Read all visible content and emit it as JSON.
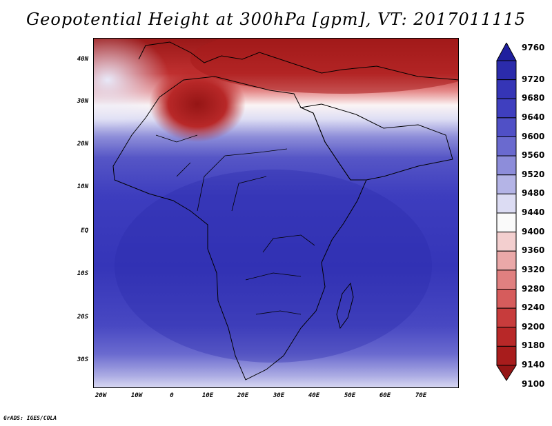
{
  "title": "Geopotential Height at 300hPa [gpm], VT: 2017011115",
  "credit": "GrADS: IGES/COLA",
  "lat_labels": [
    "40N",
    "30N",
    "20N",
    "10N",
    "EQ",
    "10S",
    "20S",
    "30S"
  ],
  "lon_labels": [
    "20W",
    "10W",
    "0",
    "10E",
    "20E",
    "30E",
    "40E",
    "50E",
    "60E",
    "70E"
  ],
  "colorbar": {
    "levels": [
      "9760",
      "9720",
      "9680",
      "9640",
      "9600",
      "9560",
      "9520",
      "9480",
      "9440",
      "9400",
      "9360",
      "9320",
      "9280",
      "9240",
      "9200",
      "9180",
      "9140",
      "9100"
    ],
    "colors": [
      "#1f1f9e",
      "#2b2bab",
      "#3535b6",
      "#3f3fbf",
      "#5050c6",
      "#6a6acf",
      "#8d8dda",
      "#b4b4e6",
      "#dcdcf3",
      "#fafafa",
      "#f3cfcf",
      "#eaa8a8",
      "#e08080",
      "#d65c5c",
      "#c73c3c",
      "#b82828",
      "#a81c1c",
      "#951515"
    ]
  }
}
